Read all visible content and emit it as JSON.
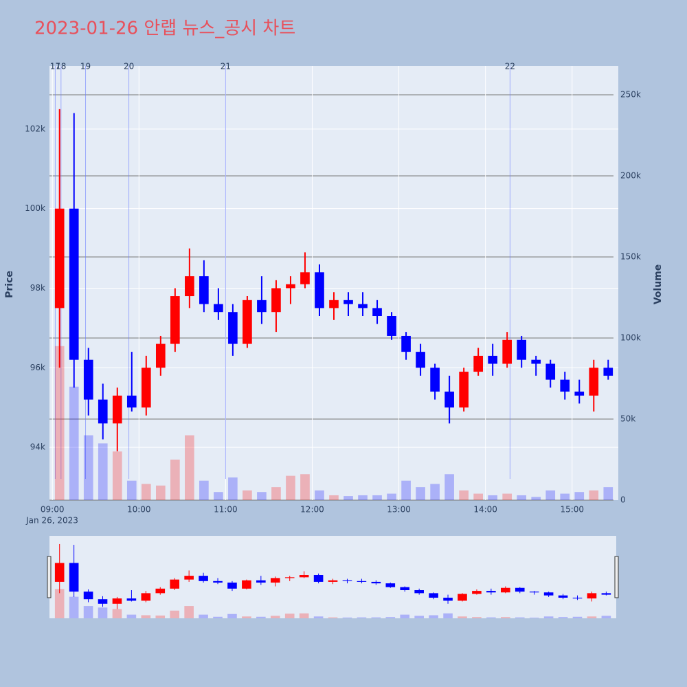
{
  "chart_data": {
    "type": "candlestick",
    "title": "2023-01-26 안랩 뉴스_공시 차트",
    "ylabel": "Price",
    "y2label": "Volume",
    "date_label": "Jan 26, 2023",
    "up_color": "#ff0000",
    "down_color": "#0000ff",
    "xlim": [
      "08:58",
      "15:32"
    ],
    "xticks": [
      "09:00",
      "10:00",
      "11:00",
      "12:00",
      "13:00",
      "14:00",
      "15:00"
    ],
    "ylim": [
      92672,
      103586
    ],
    "yticks": [
      {
        "value": 94000,
        "label": "94k"
      },
      {
        "value": 96000,
        "label": "96k"
      },
      {
        "value": 98000,
        "label": "98k"
      },
      {
        "value": 100000,
        "label": "100k"
      },
      {
        "value": 102000,
        "label": "102k"
      }
    ],
    "y2lim": [
      0,
      267800
    ],
    "y2ticks": [
      0,
      {
        "value": 50000,
        "label": "50k"
      },
      {
        "value": 100000,
        "label": "100k"
      },
      {
        "value": 150000,
        "label": "150k"
      },
      {
        "value": 200000,
        "label": "200k"
      },
      {
        "value": 250000,
        "label": "250k"
      }
    ],
    "events": [
      {
        "x": "09:02",
        "label": "17"
      },
      {
        "x": "09:06",
        "label": "18"
      },
      {
        "x": "09:23",
        "label": "19"
      },
      {
        "x": "09:53",
        "label": "20"
      },
      {
        "x": "11:00",
        "label": "21"
      },
      {
        "x": "14:17",
        "label": "22"
      }
    ],
    "x": [
      "09:00",
      "09:10",
      "09:20",
      "09:30",
      "09:40",
      "09:50",
      "10:00",
      "10:10",
      "10:20",
      "10:30",
      "10:40",
      "10:50",
      "11:00",
      "11:10",
      "11:20",
      "11:30",
      "11:40",
      "11:50",
      "12:00",
      "12:10",
      "12:20",
      "12:30",
      "12:40",
      "12:50",
      "13:00",
      "13:10",
      "13:20",
      "13:30",
      "13:40",
      "13:50",
      "14:00",
      "14:10",
      "14:20",
      "14:30",
      "14:40",
      "14:50",
      "15:00",
      "15:10",
      "15:20"
    ],
    "open": [
      97500,
      100000,
      96200,
      95200,
      94600,
      95300,
      95000,
      96000,
      96600,
      97800,
      98300,
      97600,
      97400,
      96600,
      97700,
      97400,
      98000,
      98100,
      98400,
      97500,
      97700,
      97600,
      97500,
      97300,
      96800,
      96400,
      96000,
      95400,
      95000,
      95900,
      96300,
      96100,
      96700,
      96200,
      96100,
      95700,
      95400,
      95300,
      96000
    ],
    "high": [
      102500,
      102400,
      96500,
      95600,
      95500,
      96400,
      96300,
      96800,
      98000,
      99000,
      98700,
      98000,
      97600,
      97800,
      98300,
      98200,
      98300,
      98900,
      98600,
      97900,
      97900,
      97900,
      97700,
      97400,
      96900,
      96600,
      96100,
      95800,
      96000,
      96500,
      96600,
      96900,
      96800,
      96300,
      96200,
      95900,
      95700,
      96200,
      96200
    ],
    "low": [
      96000,
      95500,
      94800,
      94200,
      93900,
      94900,
      94800,
      95800,
      96400,
      97500,
      97400,
      97200,
      96300,
      96500,
      97100,
      96900,
      97600,
      98000,
      97300,
      97200,
      97300,
      97300,
      97100,
      96700,
      96200,
      95800,
      95200,
      94600,
      94900,
      95800,
      95800,
      96000,
      96000,
      95800,
      95500,
      95200,
      95100,
      94900,
      95700
    ],
    "close": [
      100000,
      96200,
      95200,
      94600,
      95300,
      95000,
      96000,
      96600,
      97800,
      98300,
      97600,
      97400,
      96600,
      97700,
      97400,
      98000,
      98100,
      98400,
      97500,
      97700,
      97600,
      97500,
      97300,
      96800,
      96400,
      96000,
      95400,
      95000,
      95900,
      96300,
      96100,
      96700,
      96200,
      96100,
      95700,
      95400,
      95300,
      96000,
      95800
    ],
    "volume": [
      95000,
      70000,
      40000,
      35000,
      30000,
      12000,
      10000,
      9000,
      25000,
      40000,
      12000,
      5000,
      14000,
      6000,
      5000,
      8000,
      15000,
      16000,
      6000,
      3000,
      2500,
      3000,
      3000,
      4000,
      12000,
      8000,
      10000,
      16000,
      6000,
      4000,
      3000,
      4000,
      3000,
      2000,
      6000,
      4000,
      5000,
      6000,
      8000
    ]
  }
}
